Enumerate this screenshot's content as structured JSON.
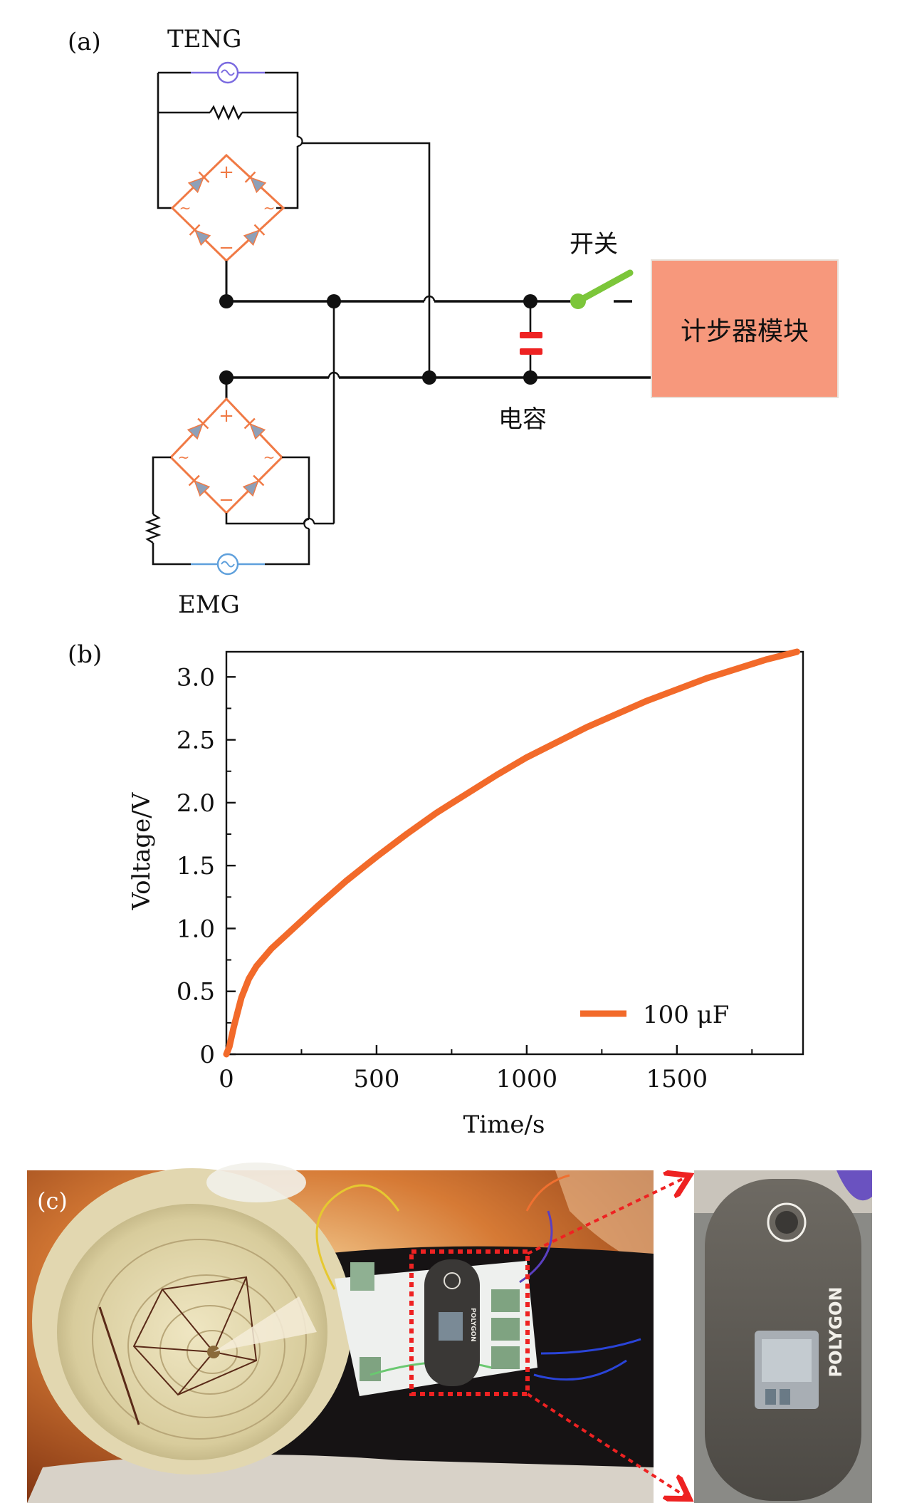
{
  "panel_a": {
    "label": "(a)",
    "teng_label": "TENG",
    "emg_label": "EMG",
    "switch_label": "开关",
    "capacitor_label": "电容",
    "module_label": "计步器模块",
    "bridge_plus": "+",
    "bridge_minus": "−",
    "bridge_ac": "~",
    "colors": {
      "bridge": "#f07a45",
      "teng_source": "#7a6ae0",
      "emg_source": "#5fa0dc",
      "switch": "#7cc63a",
      "capacitor": "#ee2222",
      "module_fill": "#f7987c",
      "wire": "#111111"
    }
  },
  "panel_b": {
    "label": "(b)",
    "chart_data": {
      "type": "line",
      "xlabel": "Time/s",
      "ylabel": "Voltage/V",
      "xlim": [
        0,
        1920
      ],
      "ylim": [
        0,
        3.2
      ],
      "xticks": [
        0,
        500,
        1000,
        1500
      ],
      "yticks": [
        0,
        0.5,
        1.0,
        1.5,
        2.0,
        2.5,
        3.0
      ],
      "ytick_labels": [
        "0",
        "0.5",
        "1.0",
        "1.5",
        "2.0",
        "2.5",
        "3.0"
      ],
      "grid": false,
      "legend_position": "bottom-right",
      "series": [
        {
          "name": "100 μF",
          "color": "#f26a2a",
          "x": [
            0,
            10,
            25,
            50,
            75,
            100,
            150,
            200,
            300,
            400,
            500,
            600,
            700,
            800,
            900,
            1000,
            1200,
            1400,
            1600,
            1800,
            1900
          ],
          "y": [
            0,
            0.06,
            0.22,
            0.45,
            0.6,
            0.7,
            0.84,
            0.95,
            1.17,
            1.38,
            1.57,
            1.75,
            1.92,
            2.07,
            2.22,
            2.36,
            2.6,
            2.81,
            2.99,
            3.14,
            3.2
          ]
        }
      ]
    }
  },
  "panel_c": {
    "label": "(c)",
    "device_brand": "POLYGON",
    "colors": {
      "background": "#c8632a",
      "highlight_box": "#ee2222"
    }
  }
}
